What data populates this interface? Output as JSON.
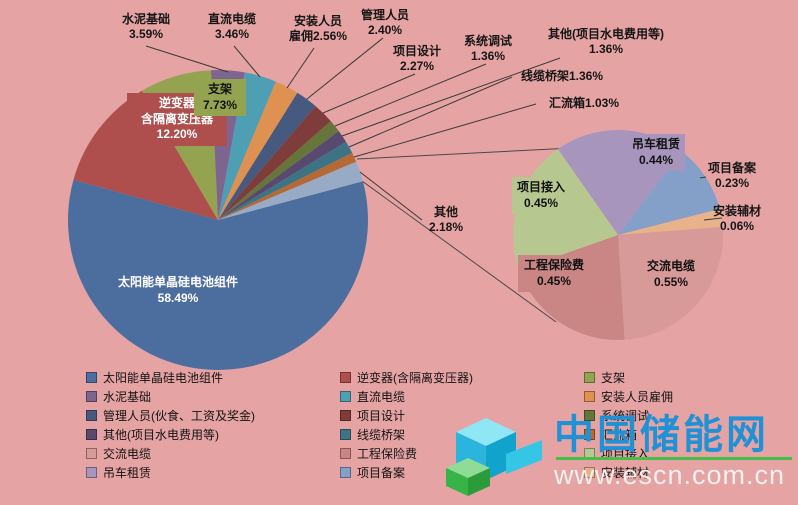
{
  "background": "#E5A3A3",
  "chart_data": {
    "type": "pie",
    "subtype": "pie-of-pie",
    "title": "",
    "legend_position": "bottom",
    "main": {
      "start_angle": 75,
      "slices": [
        {
          "label": "太阳能单晶硅电池组件",
          "value": 58.49,
          "color": "#4C6E9E"
        },
        {
          "label": "逆变器(含隔离变压器)",
          "value": 12.2,
          "color": "#AE4F4D"
        },
        {
          "label": "支架",
          "value": 7.73,
          "color": "#94A34F"
        },
        {
          "label": "水泥基础",
          "value": 3.59,
          "color": "#7D6590"
        },
        {
          "label": "直流电缆",
          "value": 3.46,
          "color": "#4E9EB4"
        },
        {
          "label": "安装人员雇佣",
          "value": 2.56,
          "color": "#DE9150"
        },
        {
          "label": "管理人员",
          "value": 2.4,
          "color": "#46597E"
        },
        {
          "label": "项目设计",
          "value": 2.27,
          "color": "#7E3D3B"
        },
        {
          "label": "系统调试",
          "value": 1.36,
          "color": "#66763B"
        },
        {
          "label": "其他(项目水电费用等)",
          "value": 1.36,
          "color": "#584A6E"
        },
        {
          "label": "线缆桥架",
          "value": 1.36,
          "color": "#3C7486"
        },
        {
          "label": "汇流箱",
          "value": 1.03,
          "color": "#B56A35"
        },
        {
          "label": "其他",
          "value": 2.18,
          "color": "#97ABC6"
        }
      ]
    },
    "secondary": {
      "start_angle": 325,
      "slices": [
        {
          "label": "吊车租赁",
          "value": 0.44,
          "color": "#A795BD"
        },
        {
          "label": "项目备案",
          "value": 0.23,
          "color": "#84A0C8"
        },
        {
          "label": "安装辅材",
          "value": 0.06,
          "color": "#E8B28A"
        },
        {
          "label": "交流电缆",
          "value": 0.55,
          "color": "#D89A98"
        },
        {
          "label": "工程保险费",
          "value": 0.45,
          "color": "#C98684"
        },
        {
          "label": "项目接入",
          "value": 0.45,
          "color": "#B6C88F"
        }
      ]
    }
  },
  "labels": {
    "cement": {
      "l1": "水泥基础",
      "l2": "3.59%"
    },
    "dc_cable": {
      "l1": "直流电缆",
      "l2": "3.46%"
    },
    "installer": {
      "l1": "安装人员",
      "l2": "雇佣2.56%"
    },
    "manager": {
      "l1": "管理人员",
      "l2": "2.40%"
    },
    "design": {
      "l1": "项目设计",
      "l2": "2.27%"
    },
    "commissioning": {
      "l1": "系统调试",
      "l2": "1.36%"
    },
    "other_utility": {
      "l1": "其他(项目水电费用等)",
      "l2": "1.36%"
    },
    "cable_tray": {
      "l1": "线缆桥架1.36%"
    },
    "combiner_box": {
      "l1": "汇流箱1.03%"
    },
    "other": {
      "l1": "其他",
      "l2": "2.18%"
    },
    "inverter": {
      "l1": "逆变器",
      "l2": "含隔离变压器",
      "l3": "12.20%"
    },
    "bracket": {
      "l1": "支架",
      "l2": "7.73%"
    },
    "solar": {
      "l1": "太阳能单晶硅电池组件",
      "l2": "58.49%"
    },
    "crane": {
      "l1": "吊车租赁",
      "l2": "0.44%"
    },
    "filing": {
      "l1": "项目备案",
      "l2": "0.23%"
    },
    "aux_material": {
      "l1": "安装辅材",
      "l2": "0.06%"
    },
    "ac_cable": {
      "l1": "交流电缆",
      "l2": "0.55%"
    },
    "insurance": {
      "l1": "工程保险费",
      "l2": "0.45%"
    },
    "access": {
      "l1": "项目接入",
      "l2": "0.45%"
    }
  },
  "legend": {
    "items": [
      {
        "label": "太阳能单晶硅电池组件",
        "color": "#4C6E9E"
      },
      {
        "label": "逆变器(含隔离变压器)",
        "color": "#AE4F4D"
      },
      {
        "label": "支架",
        "color": "#94A34F"
      },
      {
        "label": "水泥基础",
        "color": "#7D6590"
      },
      {
        "label": "直流电缆",
        "color": "#4E9EB4"
      },
      {
        "label": "安装人员雇佣",
        "color": "#DE9150"
      },
      {
        "label": "管理人员(伙食、工资及奖金)",
        "color": "#46597E"
      },
      {
        "label": "项目设计",
        "color": "#7E3D3B"
      },
      {
        "label": "系统调试",
        "color": "#66763B"
      },
      {
        "label": "其他(项目水电费用等)",
        "color": "#584A6E"
      },
      {
        "label": "线缆桥架",
        "color": "#3C7486"
      },
      {
        "label": "汇流箱",
        "color": "#B56A35"
      },
      {
        "label": "交流电缆",
        "color": "#D89A98"
      },
      {
        "label": "工程保险费",
        "color": "#C98684"
      },
      {
        "label": "项目接入",
        "color": "#B6C88F"
      },
      {
        "label": "吊车租赁",
        "color": "#A795BD"
      },
      {
        "label": "项目备案",
        "color": "#84A0C8"
      },
      {
        "label": "安装辅材",
        "color": "#E8B28A"
      }
    ]
  },
  "watermark": {
    "site_name": "中国储能网",
    "url": "www.escn.com.cn",
    "logo_colors": {
      "cyan": "#2BB5DC",
      "green": "#37B348"
    }
  }
}
